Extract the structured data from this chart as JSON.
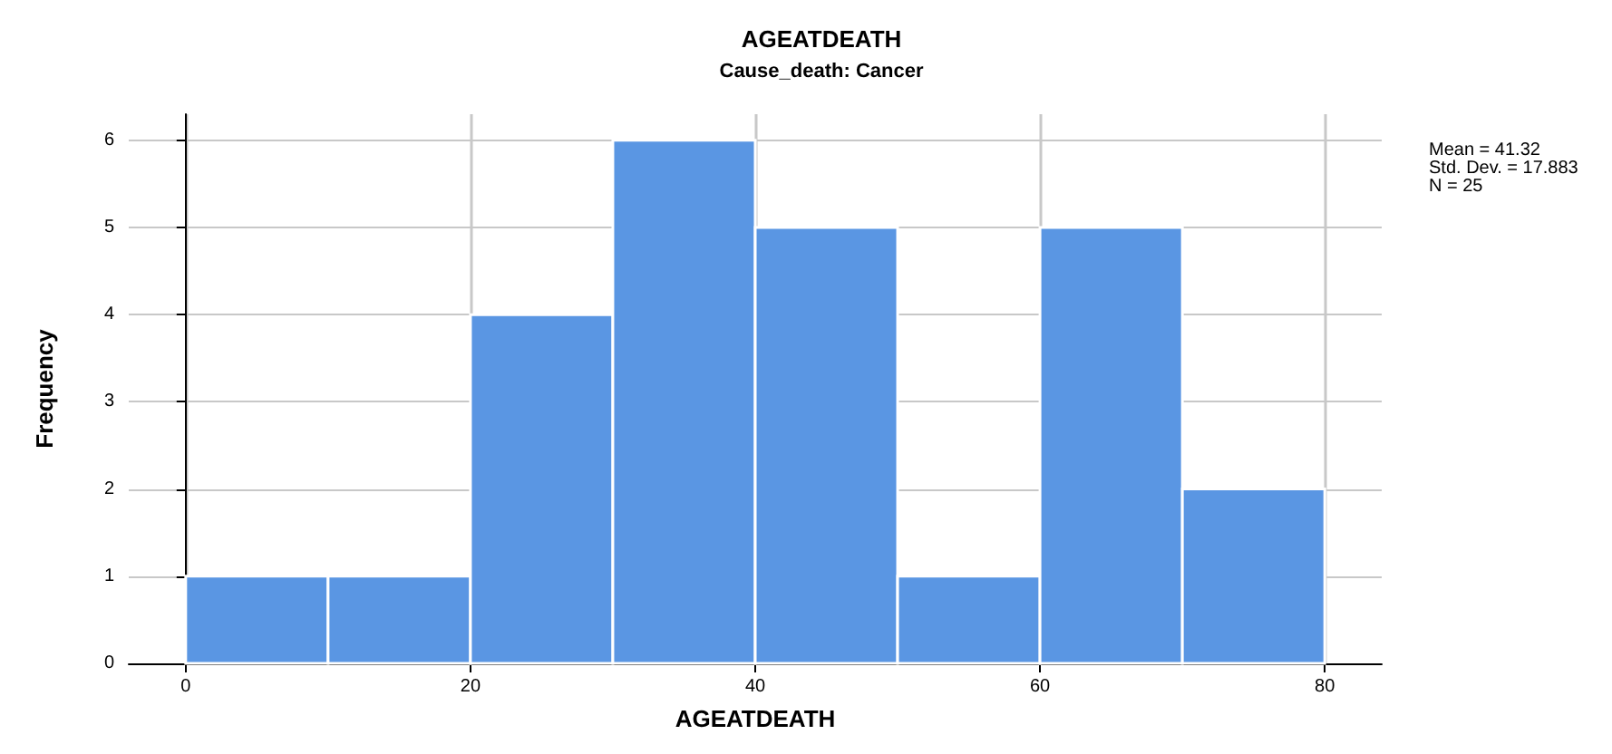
{
  "chart_data": {
    "type": "histogram",
    "title": "AGEATDEATH",
    "subtitle": "Cause_death: Cancer",
    "xlabel": "AGEATDEATH",
    "ylabel": "Frequency",
    "bins": [
      0,
      10,
      20,
      30,
      40,
      50,
      60,
      70,
      80
    ],
    "values": [
      1,
      1,
      4,
      6,
      5,
      1,
      5,
      2
    ],
    "color": "#5a96e3",
    "xlim": [
      -4,
      84
    ],
    "xticks": [
      0,
      20,
      40,
      60,
      80
    ],
    "ylim": [
      0,
      6.3
    ],
    "yticks": [
      0,
      1,
      2,
      3,
      4,
      5,
      6
    ],
    "grid": true,
    "annotations": [
      "Mean = 41.32",
      "Std. Dev. = 17.883",
      "N = 25"
    ]
  }
}
